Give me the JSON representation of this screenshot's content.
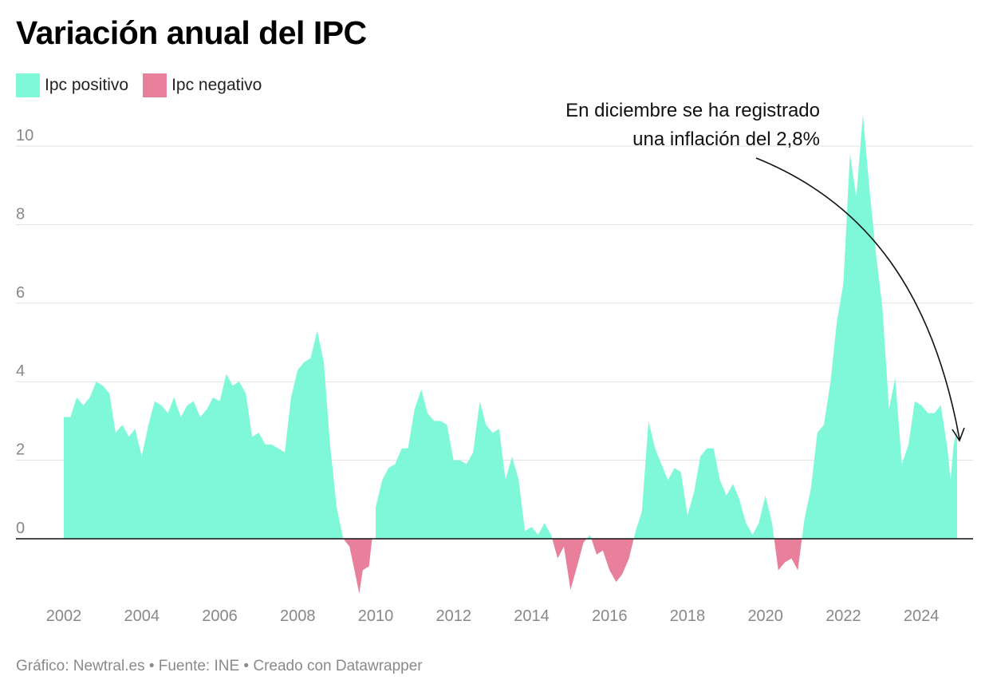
{
  "title": "Variación anual del IPC",
  "legend": [
    {
      "label": "Ipc positivo",
      "color": "#7ff8d9"
    },
    {
      "label": "Ipc negativo",
      "color": "#e8809b"
    }
  ],
  "annotation": {
    "line1": "En diciembre se ha registrado",
    "line2": "una inflación del 2,8%"
  },
  "footer": "Gráfico: Newtral.es • Fuente: INE • Creado con Datawrapper",
  "chart_data": {
    "type": "area",
    "title": "Variación anual del IPC",
    "xlabel": "",
    "ylabel": "",
    "xlim": [
      2002.0,
      2024.917
    ],
    "ylim": [
      -1.4,
      10.8
    ],
    "y_ticks": [
      0,
      2,
      4,
      6,
      8,
      10
    ],
    "x_ticks": [
      2002,
      2004,
      2006,
      2008,
      2010,
      2012,
      2014,
      2016,
      2018,
      2020,
      2022,
      2024
    ],
    "grid": true,
    "legend_position": "top-left",
    "series": [
      {
        "name": "Ipc positivo",
        "color": "#7ff8d9",
        "fill_when": "positive"
      },
      {
        "name": "Ipc negativo",
        "color": "#e8809b",
        "fill_when": "negative"
      }
    ],
    "points": [
      [
        2002.0,
        3.1
      ],
      [
        2002.17,
        3.1
      ],
      [
        2002.33,
        3.6
      ],
      [
        2002.5,
        3.4
      ],
      [
        2002.67,
        3.6
      ],
      [
        2002.83,
        4.0
      ],
      [
        2003.0,
        3.9
      ],
      [
        2003.17,
        3.7
      ],
      [
        2003.33,
        2.7
      ],
      [
        2003.5,
        2.9
      ],
      [
        2003.67,
        2.6
      ],
      [
        2003.83,
        2.8
      ],
      [
        2004.0,
        2.1
      ],
      [
        2004.17,
        2.9
      ],
      [
        2004.33,
        3.5
      ],
      [
        2004.5,
        3.4
      ],
      [
        2004.67,
        3.2
      ],
      [
        2004.83,
        3.6
      ],
      [
        2005.0,
        3.1
      ],
      [
        2005.17,
        3.4
      ],
      [
        2005.33,
        3.5
      ],
      [
        2005.5,
        3.1
      ],
      [
        2005.67,
        3.3
      ],
      [
        2005.83,
        3.6
      ],
      [
        2006.0,
        3.5
      ],
      [
        2006.17,
        4.2
      ],
      [
        2006.33,
        3.9
      ],
      [
        2006.5,
        4.0
      ],
      [
        2006.67,
        3.7
      ],
      [
        2006.83,
        2.6
      ],
      [
        2007.0,
        2.7
      ],
      [
        2007.17,
        2.4
      ],
      [
        2007.33,
        2.4
      ],
      [
        2007.5,
        2.3
      ],
      [
        2007.67,
        2.2
      ],
      [
        2007.83,
        3.6
      ],
      [
        2008.0,
        4.3
      ],
      [
        2008.17,
        4.5
      ],
      [
        2008.33,
        4.6
      ],
      [
        2008.5,
        5.3
      ],
      [
        2008.67,
        4.5
      ],
      [
        2008.83,
        2.4
      ],
      [
        2009.0,
        0.8
      ],
      [
        2009.17,
        0.0
      ],
      [
        2009.33,
        -0.2
      ],
      [
        2009.5,
        -1.0
      ],
      [
        2009.58,
        -1.4
      ],
      [
        2009.67,
        -0.8
      ],
      [
        2009.83,
        -0.7
      ],
      [
        2010.0,
        0.8
      ],
      [
        2010.17,
        1.5
      ],
      [
        2010.33,
        1.8
      ],
      [
        2010.5,
        1.9
      ],
      [
        2010.67,
        2.3
      ],
      [
        2010.83,
        2.3
      ],
      [
        2011.0,
        3.3
      ],
      [
        2011.17,
        3.8
      ],
      [
        2011.33,
        3.2
      ],
      [
        2011.5,
        3.0
      ],
      [
        2011.67,
        3.0
      ],
      [
        2011.83,
        2.9
      ],
      [
        2012.0,
        2.0
      ],
      [
        2012.17,
        2.0
      ],
      [
        2012.33,
        1.9
      ],
      [
        2012.5,
        2.2
      ],
      [
        2012.67,
        3.5
      ],
      [
        2012.83,
        2.9
      ],
      [
        2013.0,
        2.7
      ],
      [
        2013.17,
        2.8
      ],
      [
        2013.33,
        1.5
      ],
      [
        2013.5,
        2.1
      ],
      [
        2013.67,
        1.5
      ],
      [
        2013.83,
        0.2
      ],
      [
        2014.0,
        0.3
      ],
      [
        2014.17,
        0.1
      ],
      [
        2014.33,
        0.4
      ],
      [
        2014.5,
        0.1
      ],
      [
        2014.67,
        -0.5
      ],
      [
        2014.83,
        -0.2
      ],
      [
        2015.0,
        -1.3
      ],
      [
        2015.17,
        -0.7
      ],
      [
        2015.33,
        -0.1
      ],
      [
        2015.5,
        0.1
      ],
      [
        2015.67,
        -0.4
      ],
      [
        2015.83,
        -0.3
      ],
      [
        2016.0,
        -0.8
      ],
      [
        2016.17,
        -1.1
      ],
      [
        2016.33,
        -0.9
      ],
      [
        2016.5,
        -0.5
      ],
      [
        2016.67,
        0.2
      ],
      [
        2016.83,
        0.7
      ],
      [
        2017.0,
        3.0
      ],
      [
        2017.17,
        2.3
      ],
      [
        2017.33,
        1.9
      ],
      [
        2017.5,
        1.5
      ],
      [
        2017.67,
        1.8
      ],
      [
        2017.83,
        1.7
      ],
      [
        2018.0,
        0.6
      ],
      [
        2018.17,
        1.2
      ],
      [
        2018.33,
        2.1
      ],
      [
        2018.5,
        2.3
      ],
      [
        2018.67,
        2.3
      ],
      [
        2018.83,
        1.5
      ],
      [
        2019.0,
        1.1
      ],
      [
        2019.17,
        1.4
      ],
      [
        2019.33,
        1.0
      ],
      [
        2019.5,
        0.4
      ],
      [
        2019.67,
        0.1
      ],
      [
        2019.83,
        0.4
      ],
      [
        2020.0,
        1.1
      ],
      [
        2020.17,
        0.4
      ],
      [
        2020.33,
        -0.8
      ],
      [
        2020.5,
        -0.6
      ],
      [
        2020.67,
        -0.5
      ],
      [
        2020.83,
        -0.8
      ],
      [
        2021.0,
        0.5
      ],
      [
        2021.17,
        1.3
      ],
      [
        2021.33,
        2.7
      ],
      [
        2021.5,
        2.9
      ],
      [
        2021.67,
        4.0
      ],
      [
        2021.83,
        5.5
      ],
      [
        2022.0,
        6.5
      ],
      [
        2022.17,
        9.8
      ],
      [
        2022.33,
        8.7
      ],
      [
        2022.5,
        10.8
      ],
      [
        2022.67,
        8.9
      ],
      [
        2022.83,
        7.3
      ],
      [
        2023.0,
        5.9
      ],
      [
        2023.17,
        3.3
      ],
      [
        2023.33,
        4.1
      ],
      [
        2023.5,
        1.9
      ],
      [
        2023.67,
        2.4
      ],
      [
        2023.83,
        3.5
      ],
      [
        2024.0,
        3.4
      ],
      [
        2024.17,
        3.2
      ],
      [
        2024.33,
        3.2
      ],
      [
        2024.5,
        3.4
      ],
      [
        2024.67,
        2.3
      ],
      [
        2024.75,
        1.5
      ],
      [
        2024.83,
        2.4
      ],
      [
        2024.917,
        2.8
      ]
    ]
  }
}
